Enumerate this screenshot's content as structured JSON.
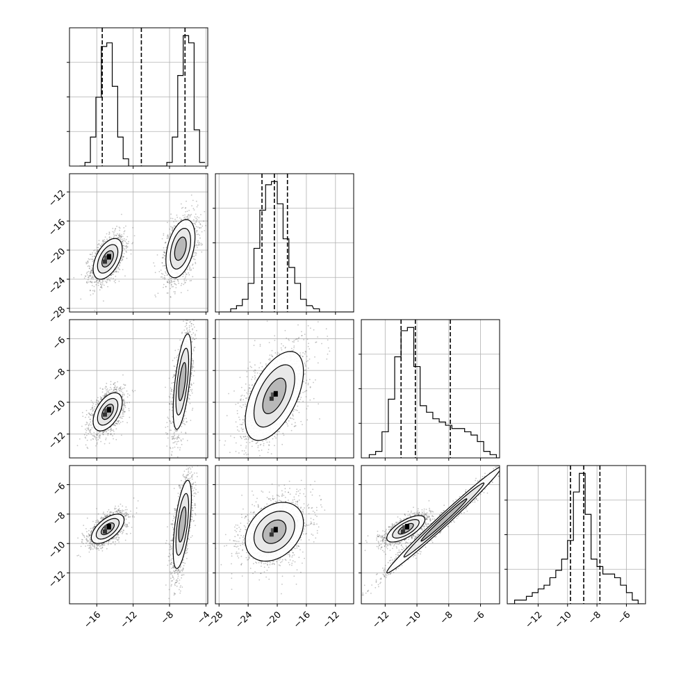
{
  "chart_data": {
    "type": "corner",
    "n_params": 4,
    "title": "",
    "colors": {
      "line": "#000000",
      "grid": "#b0b0b0",
      "scatter": "#555555",
      "fill_dark": "#000000"
    },
    "grid": true,
    "params": [
      {
        "index": 0,
        "range": [
          -19,
          -3.8
        ],
        "ticks": [
          -16,
          -12,
          -8,
          -4
        ],
        "tick_labels": [
          "−16",
          "−12",
          "−8",
          "−4"
        ],
        "quantiles": [
          -15.4,
          -11.1,
          -6.3
        ]
      },
      {
        "index": 1,
        "range": [
          -28.5,
          -9.5
        ],
        "ticks": [
          -28,
          -24,
          -20,
          -16,
          -12
        ],
        "tick_labels": [
          "−28",
          "−24",
          "−20",
          "−16",
          "−12"
        ],
        "quantiles": [
          -22.1,
          -20.4,
          -18.6
        ]
      },
      {
        "index": 2,
        "range": [
          -13.5,
          -4.8
        ],
        "ticks": [
          -12,
          -10,
          -8,
          -6
        ],
        "tick_labels": [
          "−12",
          "−10",
          "−8",
          "−6"
        ],
        "quantiles": [
          -11.0,
          -10.1,
          -7.9
        ]
      },
      {
        "index": 3,
        "range": [
          -14.1,
          -4.7
        ],
        "ticks": [
          -12,
          -10,
          -8,
          -6
        ],
        "tick_labels": [
          "−12",
          "−10",
          "−8",
          "−6"
        ],
        "quantiles": [
          -9.8,
          -8.9,
          -7.8
        ]
      }
    ],
    "histograms": [
      {
        "param": 0,
        "bin_centers": [
          -17.6,
          -17.0,
          -16.4,
          -15.8,
          -15.2,
          -14.6,
          -14.0,
          -13.4,
          -12.8,
          -12.2,
          -11.6,
          -11.0,
          -10.4,
          -9.8,
          -9.2,
          -8.6,
          -8.0,
          -7.4,
          -6.8,
          -6.2,
          -5.6,
          -5.0,
          -4.4
        ],
        "counts": [
          0,
          1,
          8,
          19,
          33,
          34,
          22,
          8,
          2,
          0,
          0,
          0,
          0,
          0,
          0,
          0,
          1,
          8,
          25,
          36,
          34,
          10,
          1
        ]
      },
      {
        "param": 1,
        "bin_centers": [
          -27.6,
          -26.8,
          -26.0,
          -25.2,
          -24.4,
          -23.6,
          -22.8,
          -22.0,
          -21.2,
          -20.4,
          -19.6,
          -18.8,
          -18.0,
          -17.2,
          -16.4,
          -15.6,
          -14.6,
          -13.8,
          -13.0,
          -12.2,
          -11.4,
          -10.6,
          -9.8
        ],
        "counts": [
          0,
          0,
          1,
          2,
          4,
          9,
          20,
          32,
          40,
          41,
          34,
          23,
          14,
          9,
          4,
          2,
          1,
          0,
          0,
          0,
          0,
          0,
          0
        ]
      },
      {
        "param": 2,
        "bin_centers": [
          -12.8,
          -12.4,
          -12.0,
          -11.6,
          -11.2,
          -10.8,
          -10.4,
          -10.0,
          -9.6,
          -9.2,
          -8.8,
          -8.4,
          -8.0,
          -7.6,
          -7.2,
          -6.8,
          -6.4,
          -6.0,
          -5.6,
          -5.2,
          -4.8
        ],
        "counts": [
          1,
          2,
          8,
          18,
          31,
          39,
          40,
          28,
          16,
          14,
          12,
          11,
          10,
          9,
          9,
          8,
          7,
          5,
          2,
          1,
          0
        ]
      },
      {
        "param": 3,
        "bin_centers": [
          -13.8,
          -13.4,
          -13.0,
          -12.6,
          -12.2,
          -11.8,
          -11.4,
          -11.0,
          -10.6,
          -10.2,
          -9.8,
          -9.4,
          -9.0,
          -8.6,
          -8.2,
          -7.8,
          -7.4,
          -7.0,
          -6.6,
          -6.2,
          -5.8,
          -5.4,
          -5.0
        ],
        "counts": [
          0,
          1,
          1,
          2,
          3,
          4,
          5,
          7,
          9,
          12,
          17,
          30,
          35,
          24,
          12,
          10,
          8,
          8,
          7,
          5,
          3,
          1,
          0
        ]
      }
    ],
    "blobs": [
      {
        "row": 1,
        "col": 0,
        "cx": -14.8,
        "cy": -21.2,
        "sx": 0.8,
        "sy": 1.4,
        "rho": 0.5,
        "core": true
      },
      {
        "row": 1,
        "col": 0,
        "cx": -6.8,
        "cy": -19.8,
        "sx": 0.8,
        "sy": 2.0,
        "rho": 0.4,
        "core": false
      },
      {
        "row": 2,
        "col": 0,
        "cx": -14.8,
        "cy": -10.6,
        "sx": 0.8,
        "sy": 0.6,
        "rho": 0.5,
        "core": true
      },
      {
        "row": 2,
        "col": 0,
        "cx": -6.6,
        "cy": -8.7,
        "sx": 0.5,
        "sy": 1.5,
        "rho": 0.6,
        "core": false
      },
      {
        "row": 3,
        "col": 0,
        "cx": -14.8,
        "cy": -9.0,
        "sx": 0.9,
        "sy": 0.5,
        "rho": 0.6,
        "core": true
      },
      {
        "row": 3,
        "col": 0,
        "cx": -6.6,
        "cy": -8.7,
        "sx": 0.5,
        "sy": 1.5,
        "rho": 0.6,
        "core": false
      },
      {
        "row": 2,
        "col": 1,
        "cx": -20.4,
        "cy": -9.6,
        "sx": 2.0,
        "sy": 1.4,
        "rho": 0.55,
        "core": true
      },
      {
        "row": 3,
        "col": 1,
        "cx": -20.4,
        "cy": -9.2,
        "sx": 2.0,
        "sy": 1.0,
        "rho": 0.3,
        "core": true
      },
      {
        "row": 3,
        "col": 2,
        "cx": -10.7,
        "cy": -9.0,
        "sx": 0.6,
        "sy": 0.45,
        "rho": 0.7,
        "core": true
      },
      {
        "row": 3,
        "col": 2,
        "cx": -8.3,
        "cy": -8.4,
        "sx": 1.8,
        "sy": 1.8,
        "rho": 0.99,
        "core": false
      }
    ]
  }
}
